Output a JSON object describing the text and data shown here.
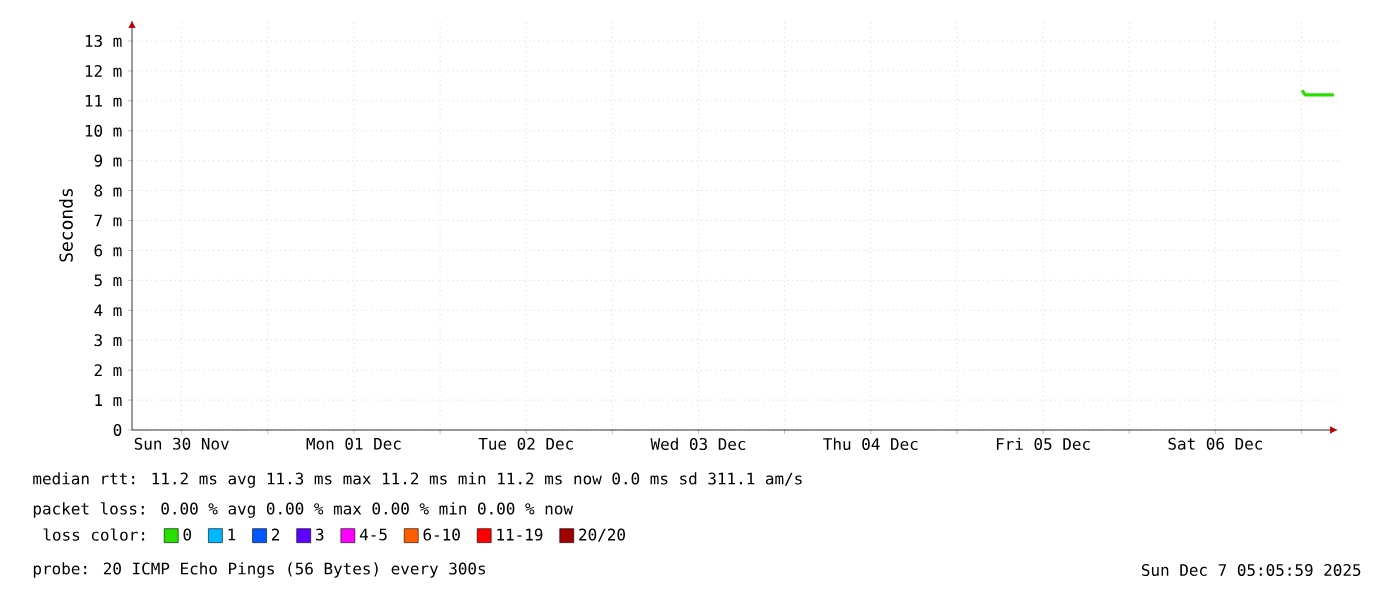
{
  "chart_data": {
    "type": "line",
    "ylabel": "Seconds",
    "xlim": [
      "2025-11-30T05:05",
      "2025-12-07T05:05"
    ],
    "xticks": [
      {
        "value": "2025-11-30T12:00",
        "label": "Sun 30 Nov"
      },
      {
        "value": "2025-12-01T00:00",
        "label": null
      },
      {
        "value": "2025-12-01T12:00",
        "label": "Mon 01 Dec"
      },
      {
        "value": "2025-12-02T00:00",
        "label": null
      },
      {
        "value": "2025-12-02T12:00",
        "label": "Tue 02 Dec"
      },
      {
        "value": "2025-12-03T00:00",
        "label": null
      },
      {
        "value": "2025-12-03T12:00",
        "label": "Wed 03 Dec"
      },
      {
        "value": "2025-12-04T00:00",
        "label": null
      },
      {
        "value": "2025-12-04T12:00",
        "label": "Thu 04 Dec"
      },
      {
        "value": "2025-12-05T00:00",
        "label": null
      },
      {
        "value": "2025-12-05T12:00",
        "label": "Fri 05 Dec"
      },
      {
        "value": "2025-12-06T00:00",
        "label": null
      },
      {
        "value": "2025-12-06T12:00",
        "label": "Sat 06 Dec"
      },
      {
        "value": "2025-12-07T00:00",
        "label": null
      }
    ],
    "ylim": [
      0,
      13.7
    ],
    "yticks": [
      {
        "value": 0,
        "label": "0"
      },
      {
        "value": 1,
        "label": "1 m"
      },
      {
        "value": 2,
        "label": "2 m"
      },
      {
        "value": 3,
        "label": "3 m"
      },
      {
        "value": 4,
        "label": "4 m"
      },
      {
        "value": 5,
        "label": "5 m"
      },
      {
        "value": 6,
        "label": "6 m"
      },
      {
        "value": 7,
        "label": "7 m"
      },
      {
        "value": 8,
        "label": "8 m"
      },
      {
        "value": 9,
        "label": "9 m"
      },
      {
        "value": 10,
        "label": "10 m"
      },
      {
        "value": 11,
        "label": "11 m"
      },
      {
        "value": 12,
        "label": "12 m"
      },
      {
        "value": 13,
        "label": "13 m"
      }
    ],
    "grid": true,
    "legend": "bottom",
    "legend_title": "loss color:",
    "series": [
      {
        "name": "0",
        "color": "#26e000",
        "x": [
          "2025-12-07T00:05",
          "2025-12-07T00:30",
          "2025-12-07T01:30",
          "2025-12-07T02:30",
          "2025-12-07T03:30",
          "2025-12-07T04:30"
        ],
        "values": [
          11.35,
          11.2,
          11.2,
          11.2,
          11.2,
          11.2
        ]
      },
      {
        "name": "1",
        "color": "#00b8ff"
      },
      {
        "name": "2",
        "color": "#0059ff"
      },
      {
        "name": "3",
        "color": "#5e00ff"
      },
      {
        "name": "4-5",
        "color": "#ff00ff"
      },
      {
        "name": "6-10",
        "color": "#ff5e00"
      },
      {
        "name": "11-19",
        "color": "#ff0000"
      },
      {
        "name": "20/20",
        "color": "#a10000"
      }
    ],
    "annotations": [
      "median rtt:  11.2 ms avg  11.3 ms max  11.2 ms min  11.2 ms now  0.0 ms sd  311.1   am/s",
      "packet loss: 0.00 % avg  0.00 % max  0.00 % min  0.00 % now",
      "probe:       20 ICMP Echo Pings (56 Bytes) every 300s",
      "Sun Dec  7 05:05:59 2025"
    ]
  }
}
